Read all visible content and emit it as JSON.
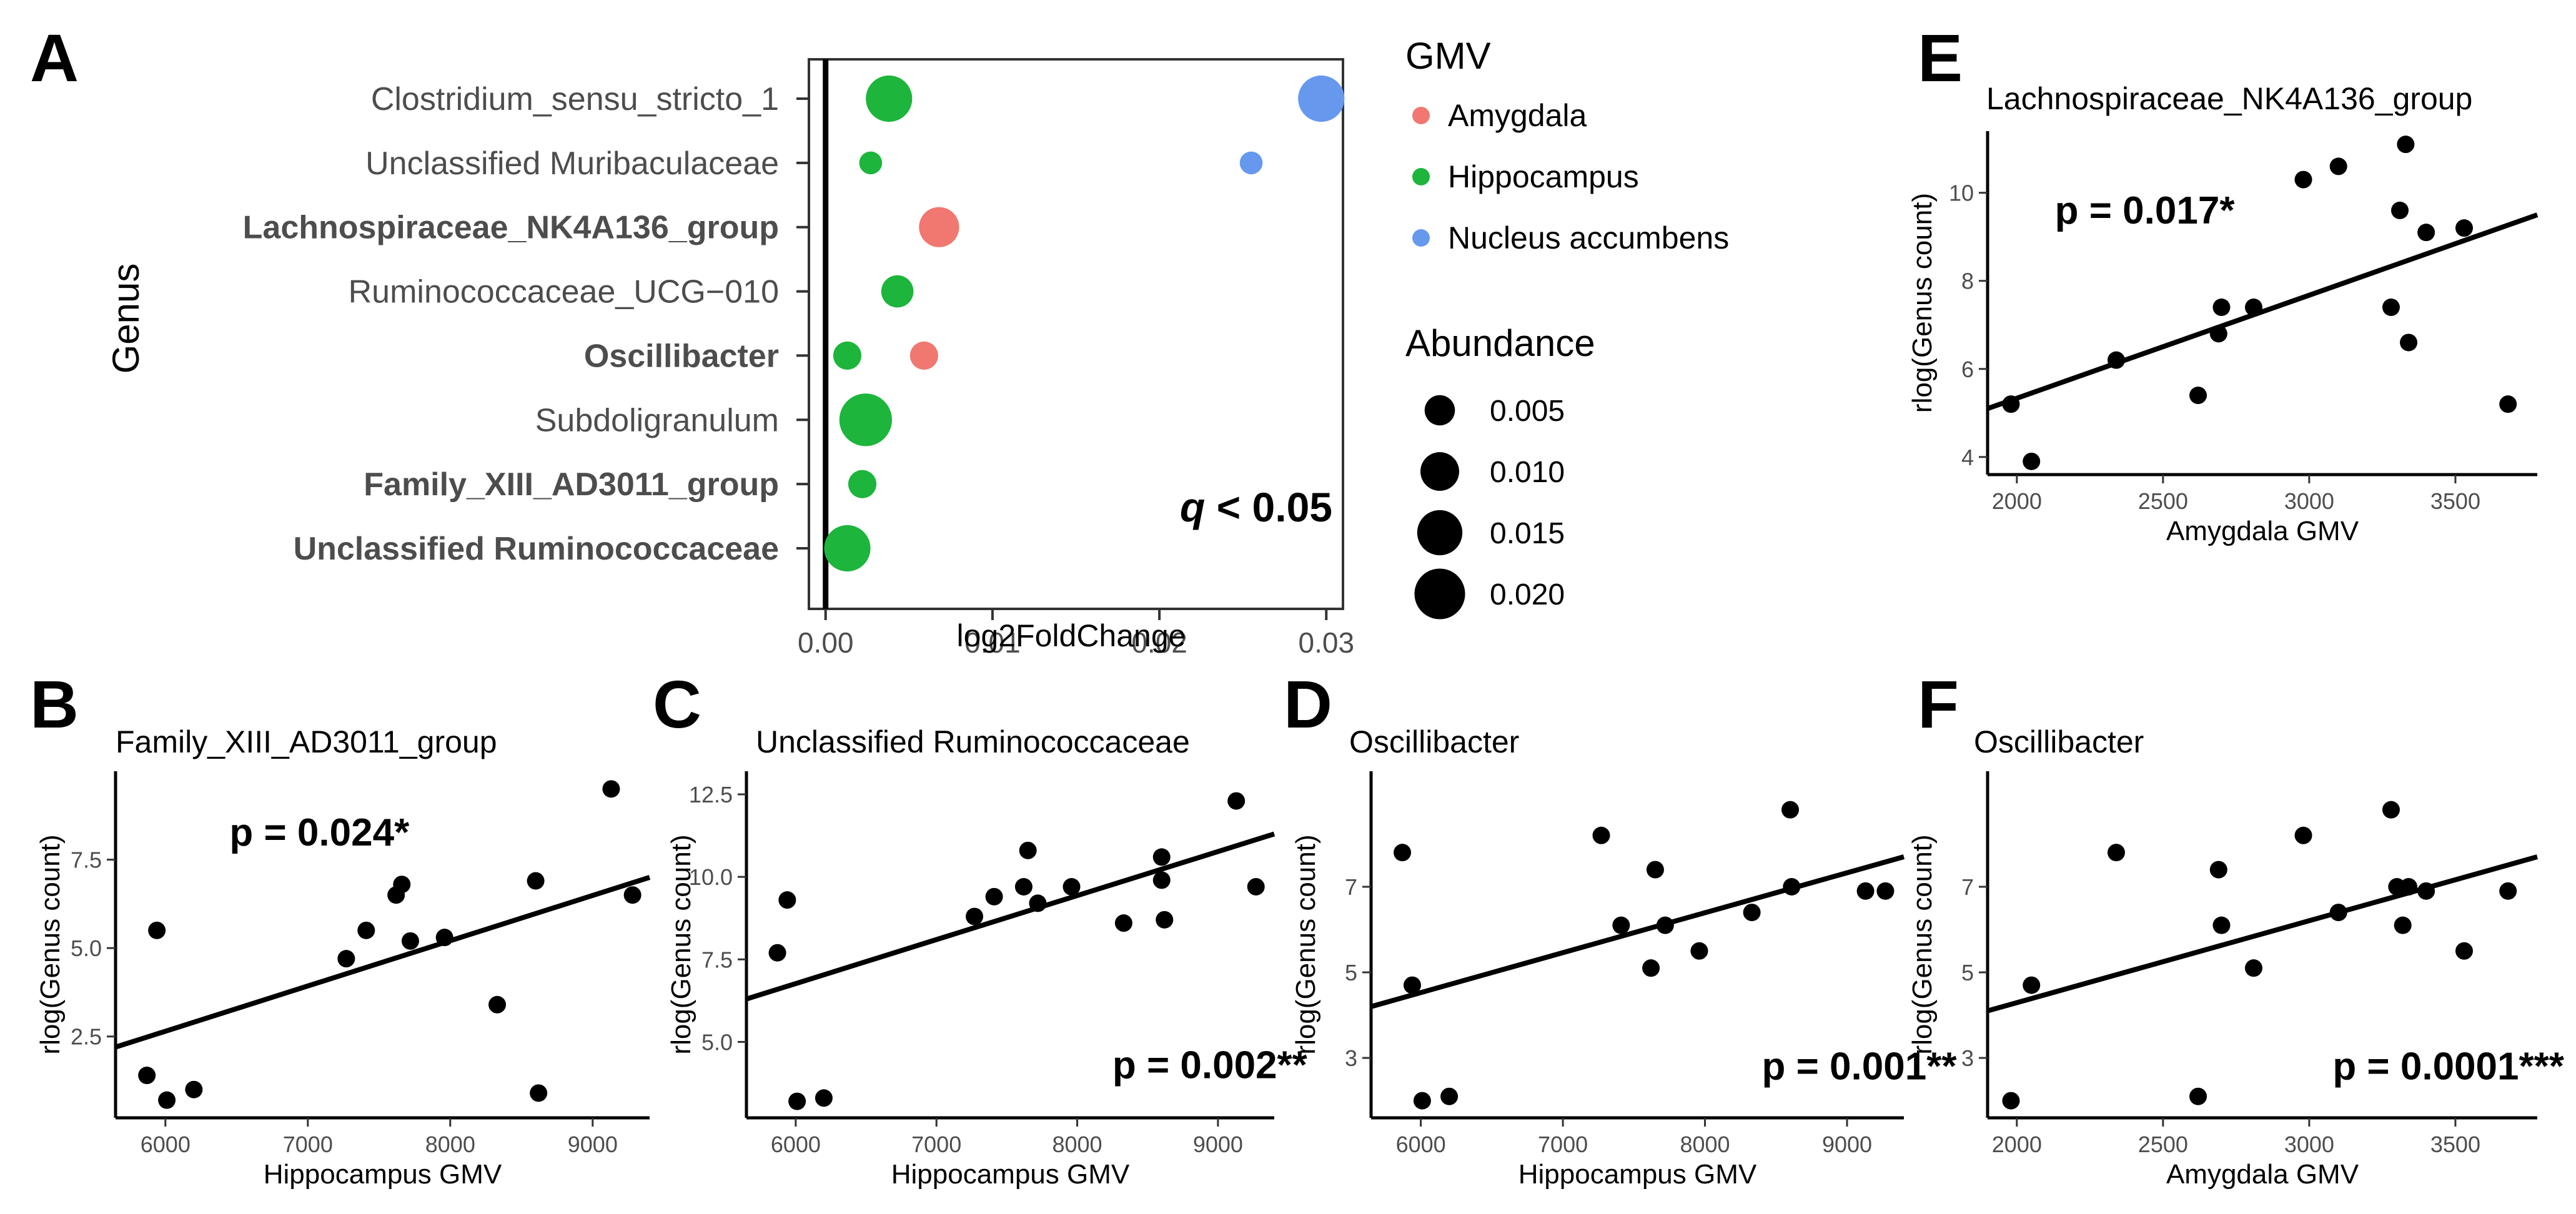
{
  "colors": {
    "amygdala": "#F07870",
    "hippocampus": "#1DB53C",
    "nucleus_accumbens": "#6699EE",
    "ink": "#000000",
    "label_gray": "#4D4D4D",
    "axis_gray": "#333333"
  },
  "chart_data": [
    {
      "panel": "A",
      "type": "scatter",
      "subtype": "dot-plot",
      "xlabel": "log2FoldChange",
      "ylabel": "Genus",
      "xlim": [
        -0.001,
        0.031
      ],
      "xticks": [
        0.0,
        0.01,
        0.02,
        0.03
      ],
      "xtick_labels": [
        "0.00",
        "0.01",
        "0.02",
        "0.03"
      ],
      "categories": [
        "Clostridium_sensu_stricto_1",
        "Unclassified Muribaculaceae",
        "Lachnospiraceae_NK4A136_group",
        "Ruminococcaceae_UCG−010",
        "Oscillibacter",
        "Subdoligranulum",
        "Family_XIII_AD3011_group",
        "Unclassified Ruminococcaceae"
      ],
      "bold_categories": [
        "Lachnospiraceae_NK4A136_group",
        "Oscillibacter",
        "Family_XIII_AD3011_group",
        "Unclassified Ruminococcaceae"
      ],
      "annotation_q": "q",
      "annotation_rest": " < 0.05",
      "points": [
        {
          "genus": 0,
          "group": "Hippocampus",
          "x": 0.0038,
          "abundance": 0.016
        },
        {
          "genus": 0,
          "group": "Nucleus accumbens",
          "x": 0.0297,
          "abundance": 0.016
        },
        {
          "genus": 1,
          "group": "Hippocampus",
          "x": 0.0027,
          "abundance": 0.002
        },
        {
          "genus": 1,
          "group": "Nucleus accumbens",
          "x": 0.0255,
          "abundance": 0.002
        },
        {
          "genus": 2,
          "group": "Amygdala",
          "x": 0.0068,
          "abundance": 0.011
        },
        {
          "genus": 3,
          "group": "Hippocampus",
          "x": 0.0043,
          "abundance": 0.006
        },
        {
          "genus": 4,
          "group": "Hippocampus",
          "x": 0.0013,
          "abundance": 0.004
        },
        {
          "genus": 4,
          "group": "Amygdala",
          "x": 0.0059,
          "abundance": 0.004
        },
        {
          "genus": 5,
          "group": "Hippocampus",
          "x": 0.0024,
          "abundance": 0.022
        },
        {
          "genus": 6,
          "group": "Hippocampus",
          "x": 0.0022,
          "abundance": 0.004
        },
        {
          "genus": 7,
          "group": "Hippocampus",
          "x": 0.0013,
          "abundance": 0.016
        }
      ],
      "legend_gmv_title": "GMV",
      "legend_gmv": [
        {
          "label": "Amygdala",
          "color_key": "amygdala"
        },
        {
          "label": "Hippocampus",
          "color_key": "hippocampus"
        },
        {
          "label": "Nucleus accumbens",
          "color_key": "nucleus_accumbens"
        }
      ],
      "legend_abundance_title": "Abundance",
      "legend_abundance": [
        {
          "label": "0.005",
          "value": 0.005
        },
        {
          "label": "0.010",
          "value": 0.01
        },
        {
          "label": "0.015",
          "value": 0.015
        },
        {
          "label": "0.020",
          "value": 0.02
        }
      ]
    },
    {
      "panel": "B",
      "type": "scatter",
      "title": "Family_XIII_AD3011_group",
      "xlabel": "Hippocampus GMV",
      "ylabel": "rlog(Genus count)",
      "xlim": [
        5650,
        9400
      ],
      "ylim": [
        0.2,
        10.0
      ],
      "xticks": [
        6000,
        7000,
        8000,
        9000
      ],
      "yticks": [
        2.5,
        5.0,
        7.5
      ],
      "ytick_labels": [
        "2.5",
        "5.0",
        "7.5"
      ],
      "annotation": "p = 0.024*",
      "annotation_pos": [
        6450,
        7.9
      ],
      "fit": {
        "x": [
          5650,
          9400
        ],
        "y": [
          2.2,
          7.0
        ]
      },
      "points": [
        [
          5870,
          1.4
        ],
        [
          5940,
          5.5
        ],
        [
          6010,
          0.7
        ],
        [
          6200,
          1.0
        ],
        [
          7270,
          4.7
        ],
        [
          7410,
          5.5
        ],
        [
          7620,
          6.5
        ],
        [
          7660,
          6.8
        ],
        [
          7720,
          5.2
        ],
        [
          7960,
          5.3
        ],
        [
          8330,
          3.4
        ],
        [
          8600,
          6.9
        ],
        [
          8620,
          0.9
        ],
        [
          9130,
          9.5
        ],
        [
          9280,
          6.5
        ]
      ]
    },
    {
      "panel": "C",
      "type": "scatter",
      "title": "Unclassified Ruminococcaceae",
      "xlabel": "Hippocampus GMV",
      "ylabel": "rlog(Genus count)",
      "xlim": [
        5650,
        9400
      ],
      "ylim": [
        2.7,
        13.2
      ],
      "xticks": [
        6000,
        7000,
        8000,
        9000
      ],
      "yticks": [
        5.0,
        7.5,
        10.0,
        12.5
      ],
      "ytick_labels": [
        "5.0",
        "7.5",
        "10.0",
        "12.5"
      ],
      "annotation": "p = 0.002**",
      "annotation_pos": [
        8250,
        3.9
      ],
      "fit": {
        "x": [
          5650,
          9400
        ],
        "y": [
          6.3,
          11.3
        ]
      },
      "points": [
        [
          5870,
          7.7
        ],
        [
          5940,
          9.3
        ],
        [
          6010,
          3.2
        ],
        [
          6200,
          3.3
        ],
        [
          7270,
          8.8
        ],
        [
          7410,
          9.4
        ],
        [
          7620,
          9.7
        ],
        [
          7650,
          10.8
        ],
        [
          7720,
          9.2
        ],
        [
          7960,
          9.7
        ],
        [
          8330,
          8.6
        ],
        [
          8600,
          10.6
        ],
        [
          8600,
          9.9
        ],
        [
          8620,
          8.7
        ],
        [
          9130,
          12.3
        ],
        [
          9270,
          9.7
        ]
      ]
    },
    {
      "panel": "D",
      "type": "scatter",
      "title": "Oscillibacter",
      "xlabel": "Hippocampus GMV",
      "ylabel": "rlog(Genus count)",
      "xlim": [
        5650,
        9400
      ],
      "ylim": [
        1.6,
        9.7
      ],
      "xticks": [
        6000,
        7000,
        8000,
        9000
      ],
      "yticks": [
        3,
        5,
        7
      ],
      "ytick_labels": [
        "3",
        "5",
        "7"
      ],
      "annotation": "p = 0.001**",
      "annotation_pos": [
        8400,
        2.5
      ],
      "fit": {
        "x": [
          5650,
          9400
        ],
        "y": [
          4.2,
          7.7
        ]
      },
      "points": [
        [
          5870,
          7.8
        ],
        [
          5940,
          4.7
        ],
        [
          6010,
          2.0
        ],
        [
          6200,
          2.1
        ],
        [
          7270,
          8.2
        ],
        [
          7410,
          6.1
        ],
        [
          7620,
          5.1
        ],
        [
          7650,
          7.4
        ],
        [
          7720,
          6.1
        ],
        [
          7960,
          5.5
        ],
        [
          8330,
          6.4
        ],
        [
          8600,
          8.8
        ],
        [
          8610,
          7.0
        ],
        [
          9130,
          6.9
        ],
        [
          9270,
          6.9
        ]
      ]
    },
    {
      "panel": "E",
      "type": "scatter",
      "title": "Lachnospiraceae_NK4A136_group",
      "xlabel": "Amygdala GMV",
      "ylabel": "rlog(Genus count)",
      "xlim": [
        1900,
        3780
      ],
      "ylim": [
        3.6,
        11.4
      ],
      "xticks": [
        2000,
        2500,
        3000,
        3500
      ],
      "yticks": [
        4,
        6,
        8,
        10
      ],
      "ytick_labels": [
        "4",
        "6",
        "8",
        "10"
      ],
      "annotation": "p = 0.017*",
      "annotation_pos": [
        2130,
        9.3
      ],
      "fit": {
        "x": [
          1900,
          3780
        ],
        "y": [
          5.1,
          9.5
        ]
      },
      "points": [
        [
          1980,
          5.2
        ],
        [
          2050,
          3.9
        ],
        [
          2340,
          6.2
        ],
        [
          2620,
          5.4
        ],
        [
          2690,
          6.8
        ],
        [
          2700,
          7.4
        ],
        [
          2810,
          7.4
        ],
        [
          2980,
          10.3
        ],
        [
          3100,
          10.6
        ],
        [
          3280,
          7.4
        ],
        [
          3310,
          9.6
        ],
        [
          3330,
          11.1
        ],
        [
          3340,
          6.6
        ],
        [
          3400,
          9.1
        ],
        [
          3530,
          9.2
        ],
        [
          3680,
          5.2
        ]
      ]
    },
    {
      "panel": "F",
      "type": "scatter",
      "title": "Oscillibacter",
      "xlabel": "Amygdala GMV",
      "ylabel": "rlog(Genus count)",
      "xlim": [
        1900,
        3780
      ],
      "ylim": [
        1.6,
        9.7
      ],
      "xticks": [
        2000,
        2500,
        3000,
        3500
      ],
      "yticks": [
        3,
        5,
        7
      ],
      "ytick_labels": [
        "3",
        "5",
        "7"
      ],
      "annotation": "p = 0.0001***",
      "annotation_pos": [
        3080,
        2.5
      ],
      "fit": {
        "x": [
          1900,
          3780
        ],
        "y": [
          4.1,
          7.7
        ]
      },
      "points": [
        [
          1980,
          2.0
        ],
        [
          2050,
          4.7
        ],
        [
          2340,
          7.8
        ],
        [
          2620,
          2.1
        ],
        [
          2690,
          7.4
        ],
        [
          2700,
          6.1
        ],
        [
          2810,
          5.1
        ],
        [
          2980,
          8.2
        ],
        [
          3100,
          6.4
        ],
        [
          3280,
          8.8
        ],
        [
          3300,
          7.0
        ],
        [
          3340,
          7.0
        ],
        [
          3320,
          6.1
        ],
        [
          3400,
          6.9
        ],
        [
          3530,
          5.5
        ],
        [
          3680,
          6.9
        ]
      ]
    }
  ],
  "panel_letters": [
    "A",
    "B",
    "C",
    "D",
    "E",
    "F"
  ]
}
